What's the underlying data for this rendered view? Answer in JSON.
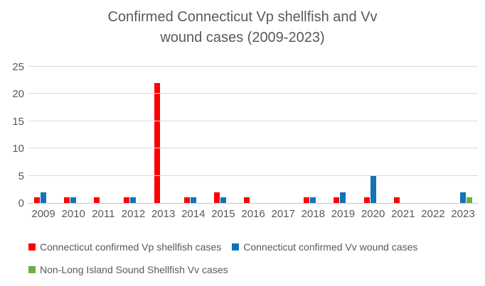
{
  "header": {
    "title_line1": "Confirmed Connecticut Vp shellfish and Vv",
    "title_line2": "wound cases (2009-2023)"
  },
  "colors": {
    "vp_red": "#fe0000",
    "vv_blue": "#1273b8",
    "nonlis_green": "#6fad46",
    "text_gray": "#595959",
    "gridline": "#d9d9d9"
  },
  "chart_data": {
    "type": "bar",
    "title": "Confirmed Connecticut Vp shellfish and Vv wound cases (2009-2023)",
    "categories": [
      "2009",
      "2010",
      "2011",
      "2012",
      "2013",
      "2014",
      "2015",
      "2016",
      "2017",
      "2018",
      "2019",
      "2020",
      "2021",
      "2022",
      "2023"
    ],
    "series": [
      {
        "name": "Connecticut confirmed Vp shellfish cases",
        "color": "#fe0000",
        "values": [
          1,
          1,
          1,
          1,
          22,
          1,
          2,
          1,
          0,
          1,
          1,
          1,
          1,
          0,
          0
        ]
      },
      {
        "name": "Connecticut confirmed Vv wound cases",
        "color": "#1273b8",
        "values": [
          2,
          1,
          0,
          1,
          0,
          1,
          1,
          0,
          0,
          1,
          2,
          5,
          0,
          0,
          2
        ]
      },
      {
        "name": "Non-Long Island Sound Shellfish Vv cases",
        "color": "#6fad46",
        "values": [
          0,
          0,
          0,
          0,
          0,
          0,
          0,
          0,
          0,
          0,
          0,
          0,
          0,
          0,
          1
        ]
      }
    ],
    "xlabel": "",
    "ylabel": "",
    "ylim": [
      0,
      25
    ],
    "yticks": [
      0,
      5,
      10,
      15,
      20,
      25
    ],
    "grid": true,
    "legend_position": "bottom",
    "legend_rows": [
      [
        0,
        1
      ],
      [
        2
      ]
    ]
  }
}
